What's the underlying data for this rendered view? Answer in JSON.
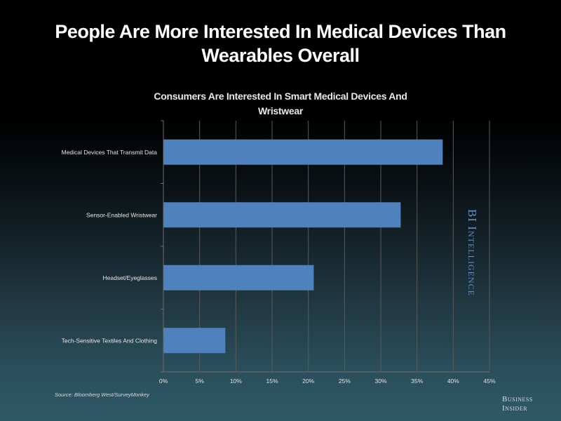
{
  "header": {
    "title_line1": "People Are More Interested In Medical Devices Than",
    "title_line2": "Wearables Overall"
  },
  "chart_data": {
    "type": "bar",
    "orientation": "horizontal",
    "title_line1": "Consumers Are Interested In Smart Medical Devices And",
    "title_line2": "Wristwear",
    "categories": [
      "Medical Devices That Transmit Data",
      "Sensor-Enabled Wristwear",
      "Headset/Eyeglasses",
      "Tech-Sensitive Textiles And Clothing"
    ],
    "values": [
      38.5,
      32.7,
      20.7,
      8.5
    ],
    "unit": "%",
    "xlim": [
      0,
      45
    ],
    "xticks": [
      0,
      5,
      10,
      15,
      20,
      25,
      30,
      35,
      40,
      45
    ],
    "xtick_labels": [
      "0%",
      "5%",
      "10%",
      "15%",
      "20%",
      "25%",
      "30%",
      "35%",
      "40%",
      "45%"
    ],
    "grid": "vertical",
    "legend": "none",
    "bar_color": "#4f81bd",
    "grid_color": "#5a5a5a"
  },
  "footer": {
    "source": "Source: Bloomberg West/SurveyMonkey",
    "watermark": "BI Intelligence",
    "brand_line1": "Business",
    "brand_line2": "Insider"
  }
}
